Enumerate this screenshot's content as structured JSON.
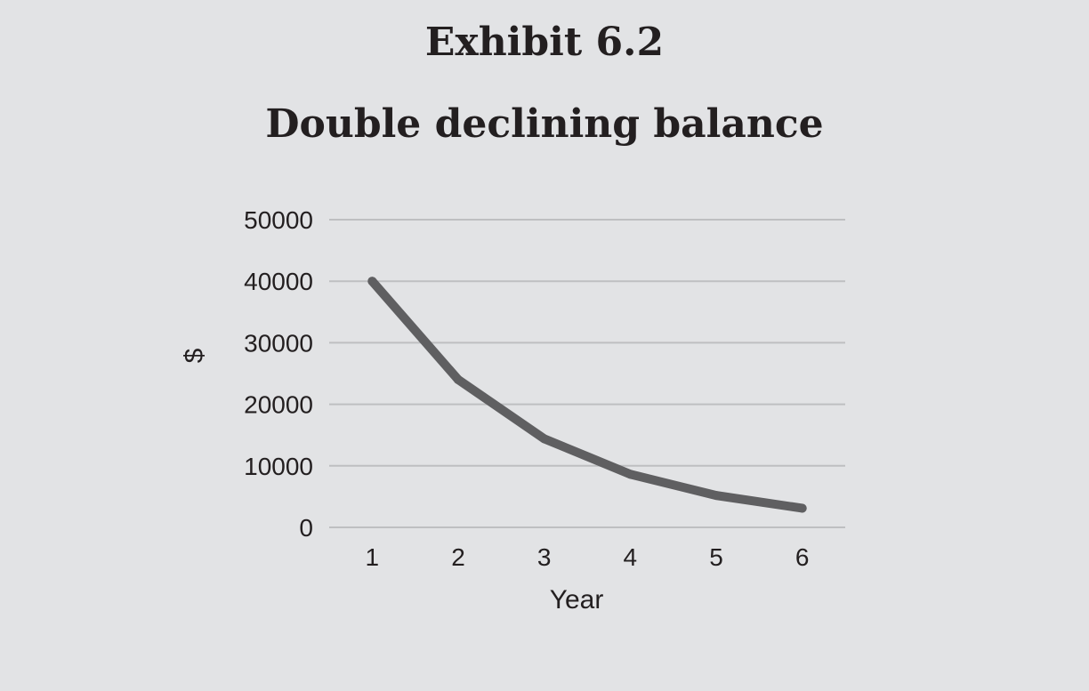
{
  "exhibit_label": "Exhibit 6.2",
  "chart_data": {
    "type": "line",
    "title": "Double declining balance",
    "xlabel": "Year",
    "ylabel": "$",
    "categories": [
      "1",
      "2",
      "3",
      "4",
      "5",
      "6"
    ],
    "series": [
      {
        "values": [
          40000,
          24000,
          14400,
          8640,
          5184,
          3110
        ],
        "color": "#5f5f61"
      }
    ],
    "yticks": [
      "0",
      "10000",
      "20000",
      "30000",
      "40000",
      "50000"
    ],
    "ylim": [
      0,
      50000
    ],
    "grid": true,
    "legend": "none",
    "colors": {
      "background": "#e2e3e5",
      "gridline": "#bebfc1",
      "text": "#231f20"
    }
  }
}
